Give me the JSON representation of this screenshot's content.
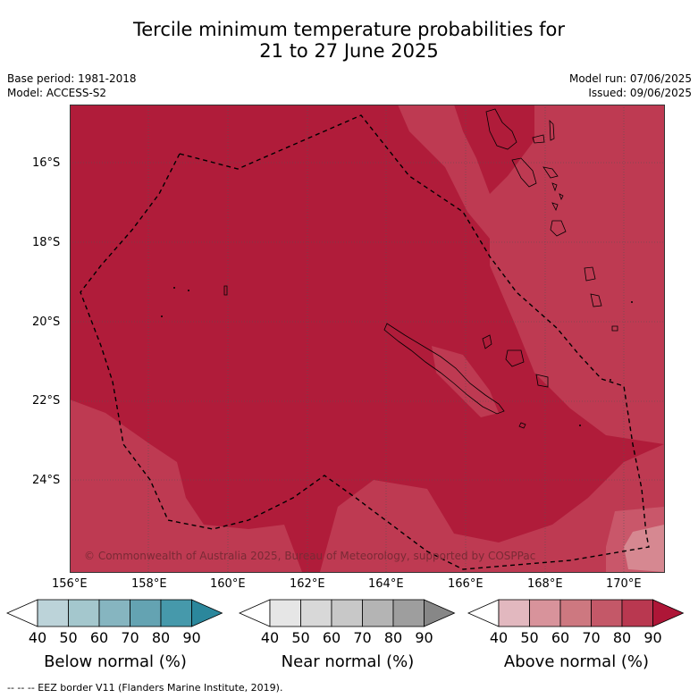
{
  "title": {
    "line1": "Tercile minimum temperature probabilities for",
    "line2": "21 to 27 June 2025"
  },
  "meta": {
    "base_period": "Base period: 1981-2018",
    "model": "Model: ACCESS-S2",
    "model_run": "Model run: 07/06/2025",
    "issued": "Issued: 09/06/2025"
  },
  "map": {
    "lat_labels": [
      "16°S",
      "18°S",
      "20°S",
      "22°S",
      "24°S"
    ],
    "lon_labels": [
      "156°E",
      "158°E",
      "160°E",
      "162°E",
      "164°E",
      "166°E",
      "168°E",
      "170°E"
    ],
    "copyright": "© Commonwealth of Australia 2025, Bureau of Meteorology, supported by COSPPac",
    "colors": {
      "above_90": "#b01c3a",
      "above_80": "#be3a52",
      "above_70": "#c9576a",
      "above_60": "#d68891"
    }
  },
  "colorbars": [
    {
      "label": "Below normal (%)",
      "ticks": [
        "40",
        "50",
        "60",
        "70",
        "80",
        "90"
      ],
      "colors": [
        "#ffffff",
        "#bcd3d9",
        "#a4c7cd",
        "#86b5c0",
        "#64a3b2",
        "#4699ab",
        "#2b879c"
      ]
    },
    {
      "label": "Near normal (%)",
      "ticks": [
        "40",
        "50",
        "60",
        "70",
        "80",
        "90"
      ],
      "colors": [
        "#ffffff",
        "#e6e6e6",
        "#d8d8d8",
        "#c8c8c8",
        "#b4b4b4",
        "#9e9e9e",
        "#878787"
      ]
    },
    {
      "label": "Above normal (%)",
      "ticks": [
        "40",
        "50",
        "60",
        "70",
        "80",
        "90"
      ],
      "colors": [
        "#ffffff",
        "#e2b8bf",
        "#d8939b",
        "#cd7880",
        "#c45868",
        "#b93850",
        "#ae1637"
      ]
    }
  ],
  "footer": "--  --  -- EEZ border V11 (Flanders Marine Institute, 2019)."
}
